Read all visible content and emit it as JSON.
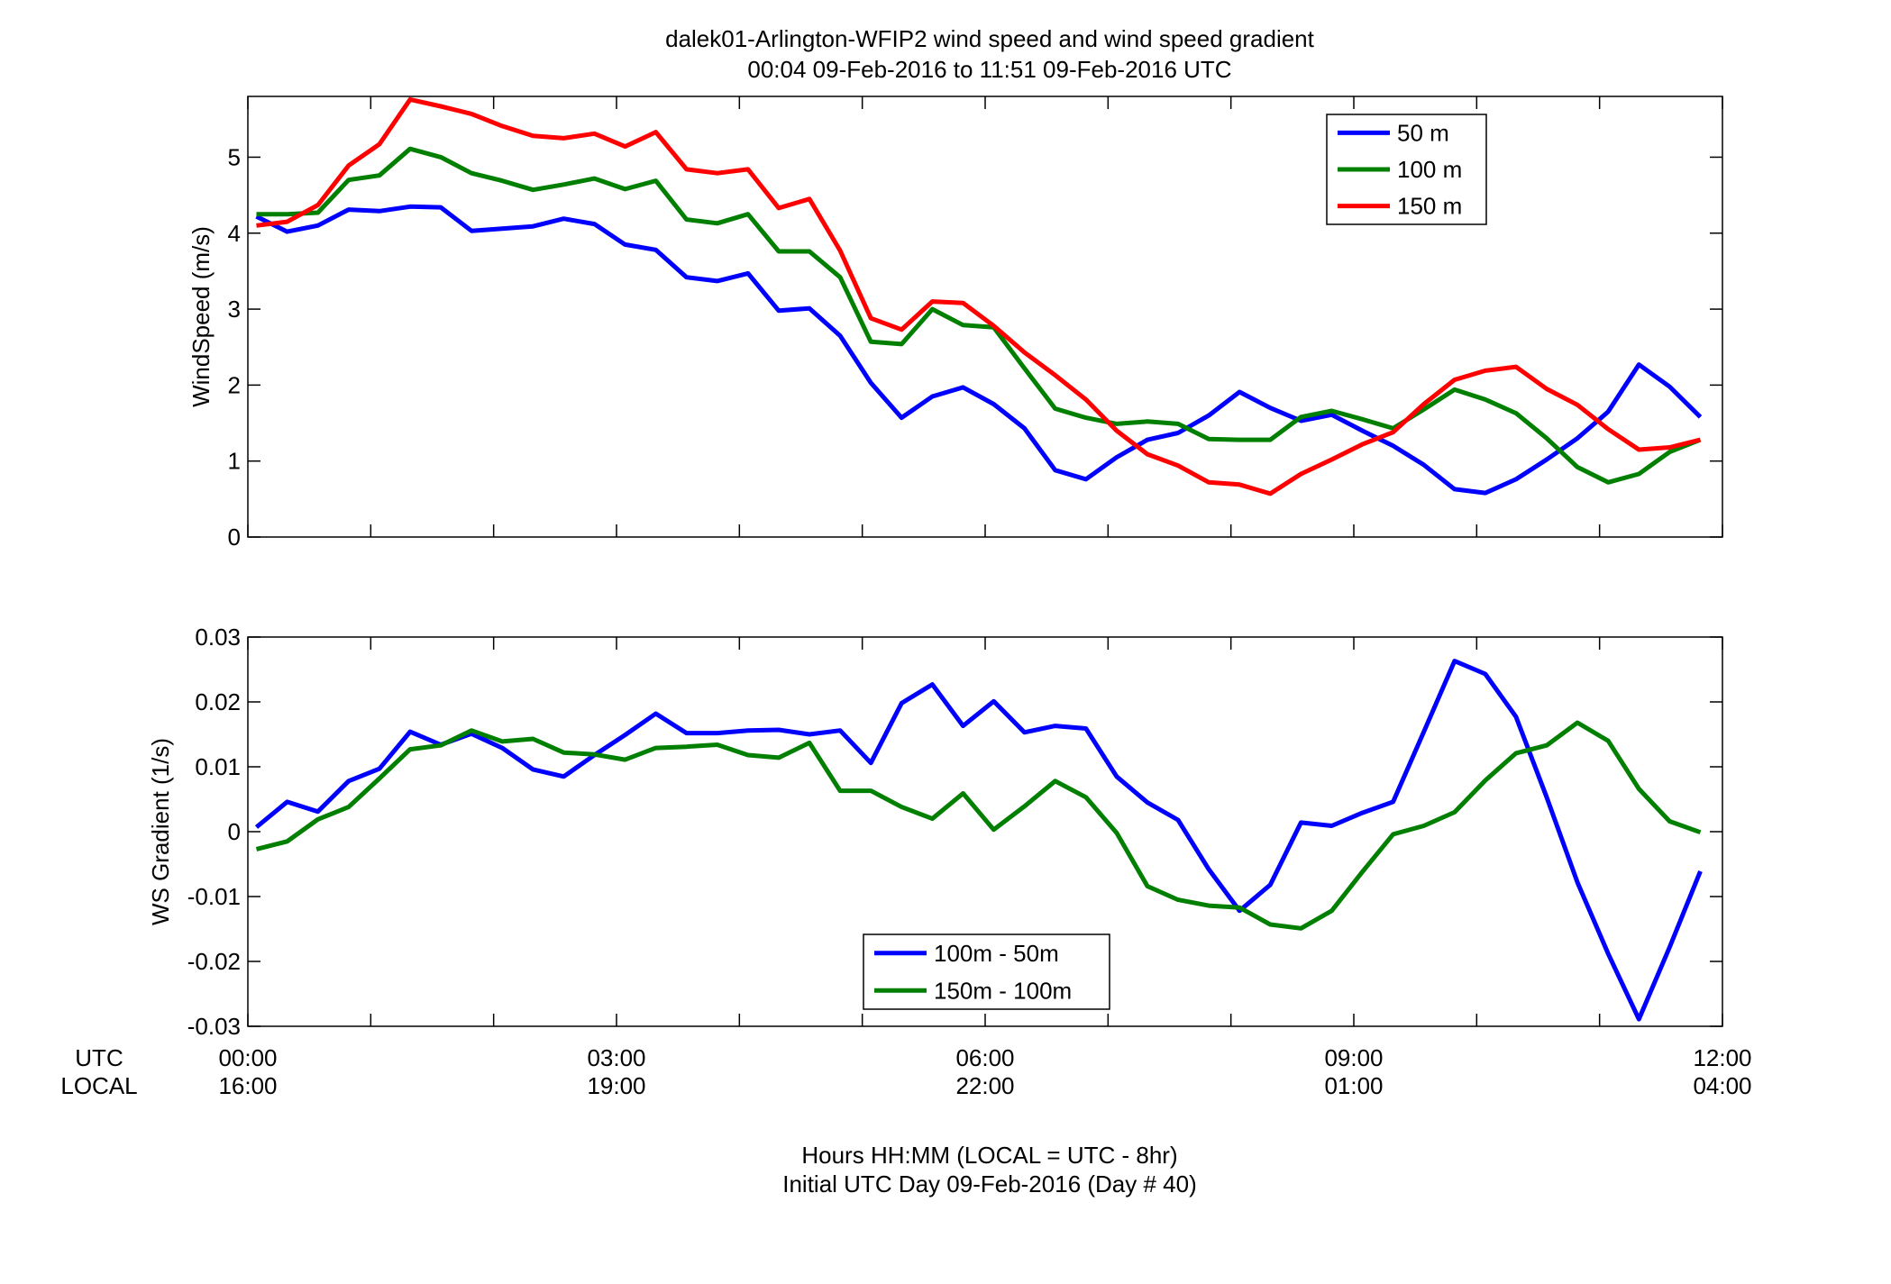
{
  "title_line1": "dalek01-Arlington-WFIP2  wind speed and wind speed gradient",
  "title_line2": "00:04 09-Feb-2016 to 11:51 09-Feb-2016  UTC",
  "xrow_label_utc": "UTC",
  "xrow_label_local": "LOCAL",
  "xticks_utc": [
    "00:00",
    "03:00",
    "06:00",
    "09:00",
    "12:00"
  ],
  "xticks_local": [
    "16:00",
    "19:00",
    "22:00",
    "01:00",
    "04:00"
  ],
  "xlabel_line1": "Hours HH:MM  (LOCAL = UTC - 8hr)",
  "xlabel_line2": "Initial UTC Day 09-Feb-2016 (Day # 40)",
  "colors": {
    "blue": "#0000ff",
    "green": "#007f00",
    "red": "#ff0000"
  },
  "chart_data": [
    {
      "type": "line",
      "ylabel": "WindSpeed (m/s)",
      "ylim": [
        0,
        5.8
      ],
      "yticks": [
        0,
        1,
        2,
        3,
        4,
        5
      ],
      "xlim_hours": [
        0,
        12
      ],
      "x_hours": [
        0.07,
        0.32,
        0.57,
        0.82,
        1.07,
        1.32,
        1.57,
        1.82,
        2.07,
        2.32,
        2.57,
        2.82,
        3.07,
        3.32,
        3.57,
        3.82,
        4.07,
        4.32,
        4.57,
        4.82,
        5.07,
        5.32,
        5.57,
        5.82,
        6.07,
        6.32,
        6.57,
        6.82,
        7.07,
        7.32,
        7.57,
        7.82,
        8.07,
        8.32,
        8.57,
        8.82,
        9.07,
        9.32,
        9.57,
        9.82,
        10.07,
        10.32,
        10.57,
        10.82,
        11.07,
        11.32,
        11.57,
        11.82
      ],
      "legend_position": "top-right",
      "series": [
        {
          "name": "50 m",
          "color": "blue",
          "values": [
            4.22,
            4.02,
            4.1,
            4.31,
            4.29,
            4.35,
            4.34,
            4.03,
            4.06,
            4.09,
            4.19,
            4.12,
            3.85,
            3.78,
            3.42,
            3.37,
            3.47,
            2.98,
            3.01,
            2.65,
            2.03,
            1.57,
            1.85,
            1.97,
            1.75,
            1.43,
            0.88,
            0.76,
            1.05,
            1.28,
            1.37,
            1.6,
            1.91,
            1.7,
            1.53,
            1.61,
            1.4,
            1.2,
            0.95,
            0.63,
            0.58,
            0.76,
            1.02,
            1.3,
            1.65,
            2.27,
            1.98,
            1.58
          ]
        },
        {
          "name": "100 m",
          "color": "green",
          "values": [
            4.25,
            4.25,
            4.27,
            4.7,
            4.76,
            5.11,
            5.0,
            4.79,
            4.69,
            4.57,
            4.64,
            4.72,
            4.58,
            4.69,
            4.18,
            4.13,
            4.25,
            3.76,
            3.76,
            3.42,
            2.57,
            2.54,
            3.0,
            2.79,
            2.76,
            2.22,
            1.69,
            1.57,
            1.49,
            1.52,
            1.49,
            1.29,
            1.28,
            1.28,
            1.58,
            1.66,
            1.55,
            1.43,
            1.68,
            1.94,
            1.81,
            1.63,
            1.3,
            0.92,
            0.72,
            0.83,
            1.12,
            1.28
          ]
        },
        {
          "name": "150 m",
          "color": "red",
          "values": [
            4.1,
            4.15,
            4.37,
            4.89,
            5.17,
            5.76,
            5.67,
            5.57,
            5.41,
            5.28,
            5.25,
            5.31,
            5.14,
            5.33,
            4.84,
            4.79,
            4.84,
            4.33,
            4.45,
            3.77,
            2.88,
            2.73,
            3.1,
            3.08,
            2.78,
            2.43,
            2.13,
            1.81,
            1.4,
            1.09,
            0.94,
            0.72,
            0.69,
            0.57,
            0.83,
            1.02,
            1.22,
            1.38,
            1.75,
            2.07,
            2.19,
            2.24,
            1.95,
            1.74,
            1.42,
            1.15,
            1.18,
            1.28
          ]
        }
      ]
    },
    {
      "type": "line",
      "ylabel": "WS Gradient (1/s)",
      "ylim": [
        -0.03,
        0.03
      ],
      "yticks": [
        -0.03,
        -0.02,
        -0.01,
        0,
        0.01,
        0.02,
        0.03
      ],
      "xlim_hours": [
        0,
        12
      ],
      "x_hours": [
        0.07,
        0.32,
        0.57,
        0.82,
        1.07,
        1.32,
        1.57,
        1.82,
        2.07,
        2.32,
        2.57,
        2.82,
        3.07,
        3.32,
        3.57,
        3.82,
        4.07,
        4.32,
        4.57,
        4.82,
        5.07,
        5.32,
        5.57,
        5.82,
        6.07,
        6.32,
        6.57,
        6.82,
        7.07,
        7.32,
        7.57,
        7.82,
        8.07,
        8.32,
        8.57,
        8.82,
        9.07,
        9.32,
        9.57,
        9.82,
        10.07,
        10.32,
        10.57,
        10.82,
        11.07,
        11.32,
        11.57,
        11.82
      ],
      "legend_position": "bottom-center",
      "series": [
        {
          "name": "100m - 50m",
          "color": "blue",
          "values": [
            0.0007,
            0.0046,
            0.0031,
            0.0078,
            0.0097,
            0.0154,
            0.0134,
            0.0151,
            0.0129,
            0.0096,
            0.0085,
            0.0118,
            0.0149,
            0.0182,
            0.0152,
            0.0152,
            0.0156,
            0.0157,
            0.015,
            0.0156,
            0.0106,
            0.0198,
            0.0227,
            0.0163,
            0.0201,
            0.0153,
            0.0163,
            0.0159,
            0.0085,
            0.0045,
            0.0018,
            -0.0058,
            -0.0122,
            -0.0082,
            0.0014,
            0.0009,
            0.0029,
            0.0046,
            0.0154,
            0.0263,
            0.0243,
            0.0177,
            0.0053,
            -0.0078,
            -0.0188,
            -0.0289,
            -0.0178,
            -0.0061
          ]
        },
        {
          "name": "150m - 100m",
          "color": "green",
          "values": [
            -0.0027,
            -0.0015,
            0.0019,
            0.0038,
            0.0082,
            0.0127,
            0.0133,
            0.0156,
            0.0139,
            0.0143,
            0.0122,
            0.0119,
            0.0111,
            0.0129,
            0.0131,
            0.0134,
            0.0118,
            0.0114,
            0.0137,
            0.0063,
            0.0063,
            0.0038,
            0.002,
            0.0059,
            0.0003,
            0.0039,
            0.0078,
            0.0053,
            -0.0002,
            -0.0084,
            -0.0105,
            -0.0114,
            -0.0117,
            -0.0143,
            -0.0149,
            -0.0122,
            -0.0062,
            -0.0004,
            0.0009,
            0.003,
            0.0079,
            0.0121,
            0.0133,
            0.0168,
            0.014,
            0.0066,
            0.0016,
            -0.0001
          ]
        }
      ]
    }
  ]
}
